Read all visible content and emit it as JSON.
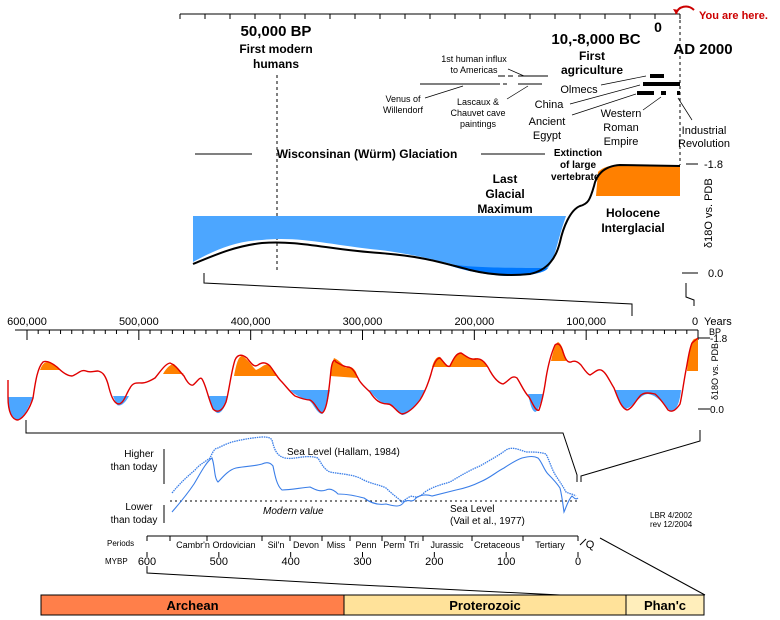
{
  "top_panel": {
    "you_are_here": "You are here.",
    "marker_50k": {
      "date": "50,000 BP",
      "line1": "First modern",
      "line2": "humans"
    },
    "marker_agri": {
      "date": "10,-8,000 BC",
      "line1": "First",
      "line2": "agriculture"
    },
    "zero_label": "0",
    "ad_label": "AD 2000",
    "events": {
      "influx_1": "1st human influx",
      "influx_2": "to Americas",
      "venus_1": "Venus of",
      "venus_2": "Willendorf",
      "lascaux_1": "Lascaux &",
      "lascaux_2": "Chauvet cave",
      "lascaux_3": "paintings",
      "olmecs": "Olmecs",
      "china": "China",
      "egypt_1": "Ancient",
      "egypt_2": "Egypt",
      "rome_1": "Western",
      "rome_2": "Roman",
      "rome_3": "Empire",
      "industrial_1": "Industrial",
      "industrial_2": "Revolution"
    },
    "glaciation": "Wisconsinan (Würm) Glaciation",
    "extinction_1": "Extinction",
    "extinction_2": "of large",
    "extinction_3": "vertebrates",
    "lgm_1": "Last",
    "lgm_2": "Glacial",
    "lgm_3": "Maximum",
    "holocene_1": "Holocene",
    "holocene_2": "Interglacial",
    "axis_top": "-1.8",
    "axis_bottom": "0.0",
    "axis_label": "δ18O vs. PDB"
  },
  "middle_panel": {
    "x_ticks": [
      "600,000",
      "500,000",
      "400,000",
      "300,000",
      "200,000",
      "100,000",
      "0"
    ],
    "x_unit_1": "Years",
    "x_unit_2": "BP",
    "y_top": "-1.8",
    "y_bottom": "0.0",
    "y_label": "δ18O vs. PDB"
  },
  "sea_level_panel": {
    "higher_1": "Higher",
    "higher_2": "than today",
    "lower_1": "Lower",
    "lower_2": "than today",
    "hallam": "Sea Level (Hallam, 1984)",
    "vail_1": "Sea Level",
    "vail_2": "(Vail et al., 1977)",
    "modern": "Modern value",
    "credit_1": "LBR 4/2002",
    "credit_2": "rev 12/2004"
  },
  "periods_axis": {
    "periods_label": "Periods",
    "mybp_label": "MYBP",
    "periods": [
      "Cambr'n",
      "Ordovician",
      "Sil'n",
      "Devon",
      "Miss",
      "Penn",
      "Perm",
      "Tri",
      "Jurassic",
      "Cretaceous",
      "Tertiary",
      "Q"
    ],
    "ticks": [
      "600",
      "500",
      "400",
      "300",
      "200",
      "100",
      "0"
    ]
  },
  "eons": [
    {
      "label": "Archean",
      "color": "#ff7f4a"
    },
    {
      "label": "Proterozoic",
      "color": "#ffe29a"
    },
    {
      "label": "Phan'c",
      "color": "#ffeebb"
    }
  ],
  "colors": {
    "warm": "#ff8000",
    "cold": "#4ca6ff",
    "cold_deep": "#0078ff",
    "curve_red": "#e00000",
    "sea_blue": "#3a7ee8",
    "you_are_here": "#cc0000"
  }
}
